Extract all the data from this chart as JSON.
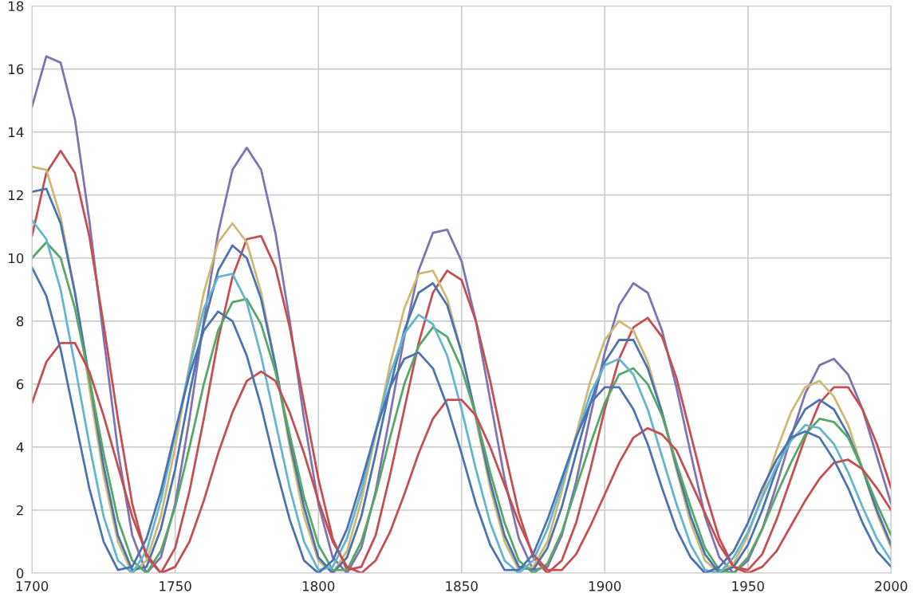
{
  "chart_data": {
    "type": "line",
    "x": [
      1700,
      1705,
      1710,
      1715,
      1720,
      1725,
      1730,
      1735,
      1740,
      1745,
      1750,
      1755,
      1760,
      1765,
      1770,
      1775,
      1780,
      1785,
      1790,
      1795,
      1800,
      1805,
      1810,
      1815,
      1820,
      1825,
      1830,
      1835,
      1840,
      1845,
      1850,
      1855,
      1860,
      1865,
      1870,
      1875,
      1880,
      1885,
      1890,
      1895,
      1900,
      1905,
      1910,
      1915,
      1920,
      1925,
      1930,
      1935,
      1940,
      1945,
      1950,
      1955,
      1960,
      1965,
      1970,
      1975,
      1980,
      1985,
      1990,
      1995,
      2000
    ],
    "series": [
      {
        "color": "#8172b2",
        "values": [
          14.8,
          16.4,
          16.2,
          14.4,
          11.2,
          7.5,
          3.9,
          1.2,
          0.0,
          0.5,
          2.2,
          4.9,
          8.0,
          10.8,
          12.8,
          13.5,
          12.8,
          10.8,
          8.0,
          4.9,
          2.2,
          0.5,
          0.0,
          0.8,
          2.6,
          5.0,
          7.5,
          9.6,
          10.8,
          10.9,
          9.9,
          8.0,
          5.5,
          3.0,
          1.1,
          0.1,
          0.2,
          1.2,
          2.9,
          5.0,
          7.0,
          8.5,
          9.2,
          8.9,
          7.7,
          5.9,
          3.8,
          1.8,
          0.5,
          0.0,
          0.4,
          1.4,
          2.8,
          4.3,
          5.7,
          6.6,
          6.8,
          6.3,
          5.2,
          3.7,
          2.2
        ]
      },
      {
        "color": "#c44e52",
        "values": [
          10.7,
          12.7,
          13.4,
          12.7,
          10.7,
          7.9,
          4.9,
          2.2,
          0.5,
          0.0,
          0.8,
          2.6,
          4.9,
          7.4,
          9.4,
          10.6,
          10.7,
          9.7,
          7.8,
          5.4,
          3.0,
          1.1,
          0.1,
          0.2,
          1.2,
          3.1,
          5.2,
          7.3,
          8.9,
          9.6,
          9.3,
          8.0,
          6.1,
          3.9,
          1.9,
          0.5,
          0.0,
          0.4,
          1.6,
          3.3,
          5.2,
          6.8,
          7.8,
          8.1,
          7.5,
          6.2,
          4.4,
          2.6,
          1.1,
          0.2,
          0.1,
          0.6,
          1.7,
          3.0,
          4.3,
          5.4,
          5.9,
          5.9,
          5.2,
          4.1,
          2.7
        ]
      },
      {
        "color": "#ccb974",
        "values": [
          12.9,
          12.8,
          11.3,
          8.9,
          5.9,
          3.1,
          1.0,
          0.0,
          0.4,
          1.8,
          4.0,
          6.6,
          8.9,
          10.5,
          11.1,
          10.5,
          8.9,
          6.6,
          4.0,
          1.8,
          0.4,
          0.0,
          0.7,
          2.3,
          4.4,
          6.6,
          8.4,
          9.5,
          9.6,
          8.7,
          7.0,
          4.9,
          2.7,
          1.0,
          0.1,
          0.2,
          1.0,
          2.6,
          4.4,
          6.1,
          7.4,
          8.0,
          7.7,
          6.7,
          5.1,
          3.3,
          1.6,
          0.4,
          0.0,
          0.3,
          1.2,
          2.5,
          3.9,
          5.1,
          5.9,
          6.1,
          5.6,
          4.7,
          3.3,
          1.9,
          0.8
        ]
      },
      {
        "color": "#4c72b0",
        "values": [
          12.1,
          12.2,
          11.1,
          8.9,
          6.2,
          3.4,
          1.2,
          0.1,
          0.2,
          1.4,
          3.3,
          5.7,
          7.9,
          9.6,
          10.4,
          10.0,
          8.7,
          6.6,
          4.2,
          2.1,
          0.5,
          0.0,
          0.5,
          1.8,
          3.8,
          5.9,
          7.7,
          8.9,
          9.2,
          8.5,
          7.0,
          5.0,
          2.9,
          1.2,
          0.2,
          0.1,
          0.8,
          2.1,
          3.8,
          5.4,
          6.7,
          7.4,
          7.4,
          6.5,
          5.1,
          3.4,
          1.8,
          0.6,
          0.0,
          0.2,
          0.9,
          2.0,
          3.3,
          4.4,
          5.2,
          5.5,
          5.2,
          4.4,
          3.3,
          2.0,
          0.9
        ]
      },
      {
        "color": "#55a868",
        "values": [
          10.0,
          10.5,
          10.0,
          8.4,
          6.2,
          3.8,
          1.7,
          0.4,
          0.0,
          0.7,
          2.1,
          4.0,
          6.0,
          7.7,
          8.6,
          8.7,
          7.9,
          6.4,
          4.4,
          2.4,
          0.9,
          0.1,
          0.1,
          1.0,
          2.5,
          4.3,
          6.0,
          7.2,
          7.8,
          7.5,
          6.5,
          5.0,
          3.2,
          1.6,
          0.4,
          0.0,
          0.3,
          1.3,
          2.7,
          4.1,
          5.4,
          6.3,
          6.5,
          6.0,
          5.0,
          3.5,
          2.1,
          0.8,
          0.1,
          0.0,
          0.5,
          1.4,
          2.5,
          3.5,
          4.4,
          4.9,
          4.8,
          4.3,
          3.3,
          2.2,
          1.2
        ]
      },
      {
        "color": "#64b5cd",
        "values": [
          11.2,
          10.6,
          9.0,
          6.6,
          4.1,
          1.8,
          0.4,
          0.0,
          0.7,
          2.3,
          4.4,
          6.5,
          8.4,
          9.4,
          9.5,
          8.6,
          6.9,
          4.8,
          2.7,
          1.0,
          0.1,
          0.2,
          1.1,
          2.6,
          4.5,
          6.3,
          7.6,
          8.2,
          7.9,
          6.9,
          5.2,
          3.3,
          1.6,
          0.4,
          0.0,
          0.4,
          1.4,
          2.8,
          4.3,
          5.7,
          6.6,
          6.8,
          6.3,
          5.2,
          3.7,
          2.2,
          0.9,
          0.1,
          0.0,
          0.5,
          1.3,
          2.4,
          3.4,
          4.2,
          4.7,
          4.6,
          4.1,
          3.2,
          2.1,
          1.1,
          0.4
        ]
      },
      {
        "color": "#c44e52",
        "values": [
          5.4,
          6.7,
          7.3,
          7.3,
          6.4,
          5.0,
          3.4,
          1.8,
          0.6,
          0.0,
          0.2,
          1.0,
          2.3,
          3.8,
          5.1,
          6.1,
          6.4,
          6.1,
          5.1,
          3.8,
          2.3,
          1.0,
          0.2,
          0.0,
          0.4,
          1.3,
          2.5,
          3.8,
          4.9,
          5.5,
          5.5,
          5.0,
          4.0,
          2.8,
          1.6,
          0.6,
          0.1,
          0.1,
          0.6,
          1.5,
          2.5,
          3.5,
          4.3,
          4.6,
          4.4,
          3.9,
          2.9,
          1.9,
          0.9,
          0.2,
          0.0,
          0.2,
          0.7,
          1.5,
          2.3,
          3.0,
          3.5,
          3.6,
          3.3,
          2.7,
          2.0
        ]
      },
      {
        "color": "#4c72b0",
        "values": [
          9.7,
          8.8,
          7.1,
          4.9,
          2.7,
          1.0,
          0.1,
          0.2,
          1.1,
          2.6,
          4.5,
          6.3,
          7.7,
          8.3,
          8.0,
          6.9,
          5.3,
          3.4,
          1.7,
          0.4,
          0.0,
          0.4,
          1.4,
          2.9,
          4.5,
          5.9,
          6.8,
          7.0,
          6.5,
          5.3,
          3.8,
          2.2,
          0.9,
          0.1,
          0.1,
          0.6,
          1.7,
          3.0,
          4.3,
          5.4,
          5.9,
          5.9,
          5.2,
          4.1,
          2.7,
          1.4,
          0.5,
          0.0,
          0.2,
          0.7,
          1.6,
          2.7,
          3.6,
          4.3,
          4.5,
          4.3,
          3.6,
          2.7,
          1.6,
          0.7,
          0.2
        ]
      }
    ],
    "xlim": [
      1700,
      2000
    ],
    "xticks": [
      1700,
      1750,
      1800,
      1850,
      1900,
      1950,
      2000
    ],
    "ylim": [
      0,
      18
    ],
    "yticks": [
      0,
      2,
      4,
      6,
      8,
      10,
      12,
      14,
      16,
      18
    ],
    "grid": true,
    "legend": false
  }
}
